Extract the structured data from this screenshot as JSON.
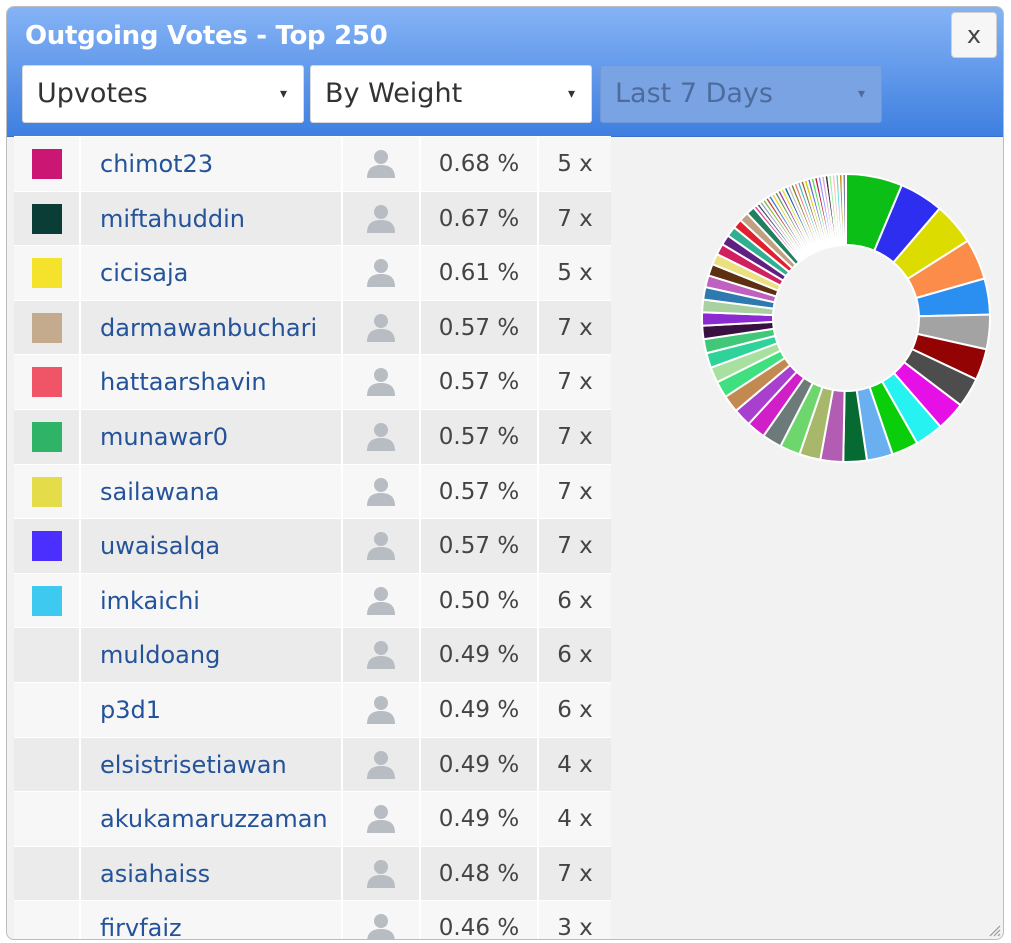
{
  "window": {
    "title": "Outgoing Votes - Top 250",
    "close_label": "x",
    "selects": [
      {
        "value": "Upvotes",
        "caret": "▾",
        "disabled": false
      },
      {
        "value": "By Weight",
        "caret": "▾",
        "disabled": false
      },
      {
        "value": "Last 7 Days",
        "caret": "▾",
        "disabled": true
      }
    ]
  },
  "rows": [
    {
      "name": "chimot23",
      "percent": "0.68 %",
      "count": "5 x",
      "color": "#cc1673"
    },
    {
      "name": "miftahuddin",
      "percent": "0.67 %",
      "count": "7 x",
      "color": "#0a3d35"
    },
    {
      "name": "cicisaja",
      "percent": "0.61 %",
      "count": "5 x",
      "color": "#f5e22a"
    },
    {
      "name": "darmawanbuchari",
      "percent": "0.57 %",
      "count": "7 x",
      "color": "#c4ab8e"
    },
    {
      "name": "hattaarshavin",
      "percent": "0.57 %",
      "count": "7 x",
      "color": "#f05567"
    },
    {
      "name": "munawar0",
      "percent": "0.57 %",
      "count": "7 x",
      "color": "#2fb366"
    },
    {
      "name": "sailawana",
      "percent": "0.57 %",
      "count": "7 x",
      "color": "#e5dc4a"
    },
    {
      "name": "uwaisalqa",
      "percent": "0.57 %",
      "count": "7 x",
      "color": "#4b2fff"
    },
    {
      "name": "imkaichi",
      "percent": "0.50 %",
      "count": "6 x",
      "color": "#3ecaf0"
    },
    {
      "name": "muldoang",
      "percent": "0.49 %",
      "count": "6 x",
      "color": ""
    },
    {
      "name": "p3d1",
      "percent": "0.49 %",
      "count": "6 x",
      "color": ""
    },
    {
      "name": "elsistrisetiawan",
      "percent": "0.49 %",
      "count": "4 x",
      "color": ""
    },
    {
      "name": "akukamaruzzaman",
      "percent": "0.49 %",
      "count": "4 x",
      "color": ""
    },
    {
      "name": "asiahaiss",
      "percent": "0.48 %",
      "count": "7 x",
      "color": ""
    },
    {
      "name": "firvfaiz",
      "percent": "0.46 %",
      "count": "3 x",
      "color": ""
    }
  ],
  "chart_data": {
    "type": "pie",
    "donut": true,
    "title": "",
    "large_slices": [
      {
        "value": 7.2,
        "color": "#0cbf16"
      },
      {
        "value": 5.6,
        "color": "#2e2ef0"
      },
      {
        "value": 5.4,
        "color": "#dcdc00"
      },
      {
        "value": 5.2,
        "color": "#fb8c4a"
      },
      {
        "value": 4.6,
        "color": "#2b8ff2"
      },
      {
        "value": 4.4,
        "color": "#a3a3a3"
      },
      {
        "value": 4.0,
        "color": "#940303"
      },
      {
        "value": 3.8,
        "color": "#4d4d4d"
      },
      {
        "value": 3.7,
        "color": "#e610e6"
      },
      {
        "value": 3.6,
        "color": "#26f2f2"
      },
      {
        "value": 3.4,
        "color": "#0ace0a"
      },
      {
        "value": 3.3,
        "color": "#6ab0f0"
      },
      {
        "value": 3.0,
        "color": "#056b32"
      },
      {
        "value": 2.9,
        "color": "#b35cb3"
      },
      {
        "value": 2.7,
        "color": "#a8b86a"
      },
      {
        "value": 2.6,
        "color": "#6dd66d"
      },
      {
        "value": 2.5,
        "color": "#6c7a7a"
      },
      {
        "value": 2.4,
        "color": "#d01ec8"
      },
      {
        "value": 2.3,
        "color": "#a83fcf"
      },
      {
        "value": 2.2,
        "color": "#c28a50"
      },
      {
        "value": 2.1,
        "color": "#40e080"
      },
      {
        "value": 2.0,
        "color": "#a8e0a0"
      },
      {
        "value": 1.9,
        "color": "#2ed39a"
      },
      {
        "value": 1.8,
        "color": "#40c878"
      },
      {
        "value": 1.7,
        "color": "#3a1040"
      },
      {
        "value": 1.7,
        "color": "#8b2bd0"
      },
      {
        "value": 1.6,
        "color": "#a8d0a0"
      },
      {
        "value": 1.6,
        "color": "#2d7ab0"
      },
      {
        "value": 1.5,
        "color": "#c060c0"
      },
      {
        "value": 1.5,
        "color": "#5c3010"
      },
      {
        "value": 1.4,
        "color": "#ebe080"
      },
      {
        "value": 1.4,
        "color": "#d02060"
      },
      {
        "value": 1.3,
        "color": "#602080"
      },
      {
        "value": 1.3,
        "color": "#30b090"
      },
      {
        "value": 1.2,
        "color": "#e02030"
      },
      {
        "value": 1.2,
        "color": "#c0a080"
      },
      {
        "value": 1.1,
        "color": "#208060"
      }
    ],
    "small_slices_colors": [
      "#e040a0",
      "#405060",
      "#a0a0c0",
      "#80c040",
      "#c04040",
      "#4080c0",
      "#f0d040",
      "#60a060",
      "#a040a0",
      "#e0e040",
      "#2060a0",
      "#c0c0c0",
      "#808020",
      "#f08080",
      "#40c0c0",
      "#a06040",
      "#d0d000",
      "#6060e0",
      "#50e050",
      "#b02050",
      "#9090ff",
      "#e0a0e0",
      "#303030",
      "#a0f0a0",
      "#ffc0c0",
      "#60e0e0",
      "#c09000",
      "#8080a0"
    ]
  }
}
